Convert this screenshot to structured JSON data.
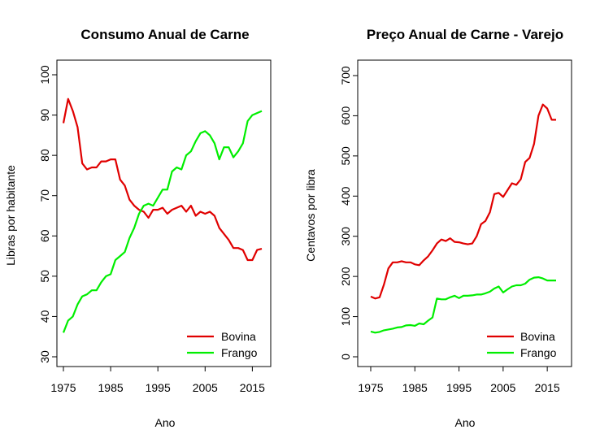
{
  "chart_data": [
    {
      "type": "line",
      "title": "Consumo Anual de Carne",
      "xlabel": "Ano",
      "ylabel": "Libras por habitante",
      "xlim": [
        1975,
        2017
      ],
      "ylim": [
        30,
        100
      ],
      "x_ticks": [
        "1975",
        "1985",
        "1995",
        "2005",
        "2015"
      ],
      "y_ticks": [
        "30",
        "40",
        "50",
        "60",
        "70",
        "80",
        "90",
        "100"
      ],
      "legend_position": "bottom-right",
      "x": [
        1975,
        1976,
        1977,
        1978,
        1979,
        1980,
        1981,
        1982,
        1983,
        1984,
        1985,
        1986,
        1987,
        1988,
        1989,
        1990,
        1991,
        1992,
        1993,
        1994,
        1995,
        1996,
        1997,
        1998,
        1999,
        2000,
        2001,
        2002,
        2003,
        2004,
        2005,
        2006,
        2007,
        2008,
        2009,
        2010,
        2011,
        2012,
        2013,
        2014,
        2015,
        2016,
        2017
      ],
      "series": [
        {
          "name": "Bovina",
          "color": "#e00000",
          "values": [
            88.0,
            94.0,
            91.0,
            87.0,
            78.0,
            76.5,
            77.0,
            77.0,
            78.5,
            78.5,
            79.0,
            79.0,
            74.0,
            72.5,
            69.0,
            67.5,
            66.5,
            66.0,
            64.5,
            66.5,
            66.5,
            67.0,
            65.5,
            66.5,
            67.0,
            67.5,
            66.0,
            67.5,
            65.0,
            66.0,
            65.5,
            66.0,
            65.0,
            62.0,
            60.5,
            59.0,
            57.0,
            57.0,
            56.5,
            54.0,
            54.0,
            56.5,
            56.8
          ]
        },
        {
          "name": "Frango",
          "color": "#00ee00",
          "values": [
            36.0,
            39.0,
            40.0,
            43.0,
            45.0,
            45.5,
            46.5,
            46.5,
            48.5,
            50.0,
            50.5,
            54.0,
            55.0,
            56.0,
            59.5,
            62.0,
            65.5,
            67.5,
            68.0,
            67.5,
            69.5,
            71.5,
            71.5,
            76.0,
            77.0,
            76.5,
            80.0,
            81.0,
            83.5,
            85.5,
            86.0,
            85.0,
            83.0,
            79.0,
            82.0,
            82.0,
            79.5,
            81.0,
            83.0,
            88.5,
            90.0,
            90.5,
            91.0
          ]
        }
      ]
    },
    {
      "type": "line",
      "title": "Preço Anual de Carne - Varejo",
      "xlabel": "Ano",
      "ylabel": "Centavos por libra",
      "xlim": [
        1975,
        2017
      ],
      "ylim": [
        0,
        700
      ],
      "x_ticks": [
        "1975",
        "1985",
        "1995",
        "2005",
        "2015"
      ],
      "y_ticks": [
        "0",
        "100",
        "200",
        "300",
        "400",
        "500",
        "600",
        "700"
      ],
      "legend_position": "bottom-right",
      "x": [
        1975,
        1976,
        1977,
        1978,
        1979,
        1980,
        1981,
        1982,
        1983,
        1984,
        1985,
        1986,
        1987,
        1988,
        1989,
        1990,
        1991,
        1992,
        1993,
        1994,
        1995,
        1996,
        1997,
        1998,
        1999,
        2000,
        2001,
        2002,
        2003,
        2004,
        2005,
        2006,
        2007,
        2008,
        2009,
        2010,
        2011,
        2012,
        2013,
        2014,
        2015,
        2016,
        2017
      ],
      "series": [
        {
          "name": "Bovina",
          "color": "#e00000",
          "values": [
            150,
            145,
            148,
            180,
            220,
            235,
            235,
            238,
            235,
            235,
            230,
            228,
            240,
            250,
            265,
            282,
            292,
            288,
            295,
            286,
            285,
            282,
            280,
            282,
            300,
            330,
            338,
            360,
            405,
            408,
            398,
            415,
            432,
            428,
            442,
            485,
            495,
            530,
            600,
            628,
            618,
            590,
            590
          ]
        },
        {
          "name": "Frango",
          "color": "#00ee00",
          "values": [
            63,
            60,
            62,
            66,
            68,
            70,
            73,
            74,
            78,
            79,
            77,
            83,
            81,
            90,
            98,
            145,
            143,
            143,
            148,
            152,
            146,
            152,
            152,
            153,
            155,
            155,
            158,
            162,
            170,
            175,
            160,
            168,
            175,
            178,
            178,
            182,
            192,
            197,
            198,
            195,
            190,
            190,
            190
          ]
        }
      ]
    }
  ]
}
